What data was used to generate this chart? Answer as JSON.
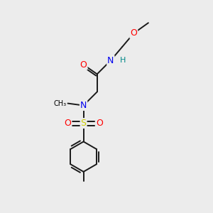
{
  "bg_color": "#ececec",
  "atom_colors": {
    "C": "#000000",
    "N": "#0000ee",
    "O": "#ff0000",
    "S": "#cccc00",
    "H": "#008888"
  },
  "bond_color": "#1a1a1a",
  "bond_width": 1.4,
  "figsize": [
    3.0,
    3.0
  ],
  "dpi": 100
}
